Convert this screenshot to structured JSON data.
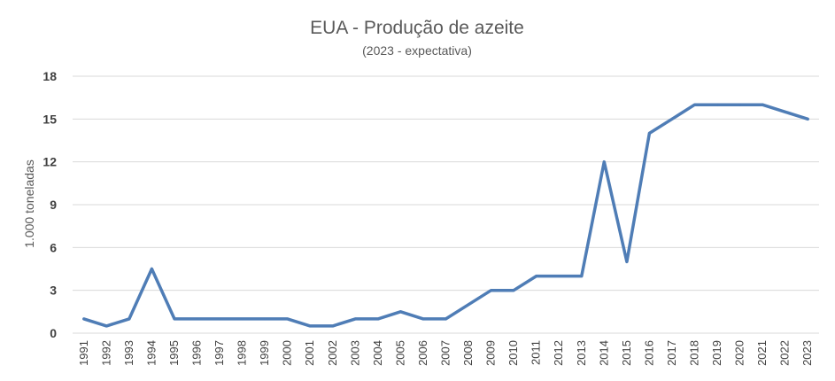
{
  "chart_data": {
    "type": "line",
    "title": "EUA - Produção de azeite",
    "subtitle": "(2023 - expectativa)",
    "xlabel": "",
    "ylabel": "1.000 toneladas",
    "ylim": [
      0,
      18
    ],
    "yticks": [
      0,
      3,
      6,
      9,
      12,
      15,
      18
    ],
    "grid": true,
    "legend": "none",
    "line_color": "#4f7db6",
    "categories": [
      "1991",
      "1992",
      "1993",
      "1994",
      "1995",
      "1996",
      "1997",
      "1998",
      "1999",
      "2000",
      "2001",
      "2002",
      "2003",
      "2004",
      "2005",
      "2006",
      "2007",
      "2008",
      "2009",
      "2010",
      "2011",
      "2012",
      "2013",
      "2014",
      "2015",
      "2016",
      "2017",
      "2018",
      "2019",
      "2020",
      "2021",
      "2022",
      "2023"
    ],
    "series": [
      {
        "values": [
          1,
          0.5,
          1,
          4.5,
          1,
          1,
          1,
          1,
          1,
          1,
          0.5,
          0.5,
          1,
          1,
          1.5,
          1,
          1,
          2,
          3,
          3,
          4,
          4,
          4,
          12,
          5,
          14,
          15,
          16,
          16,
          16,
          16,
          15.5,
          15
        ]
      }
    ]
  }
}
